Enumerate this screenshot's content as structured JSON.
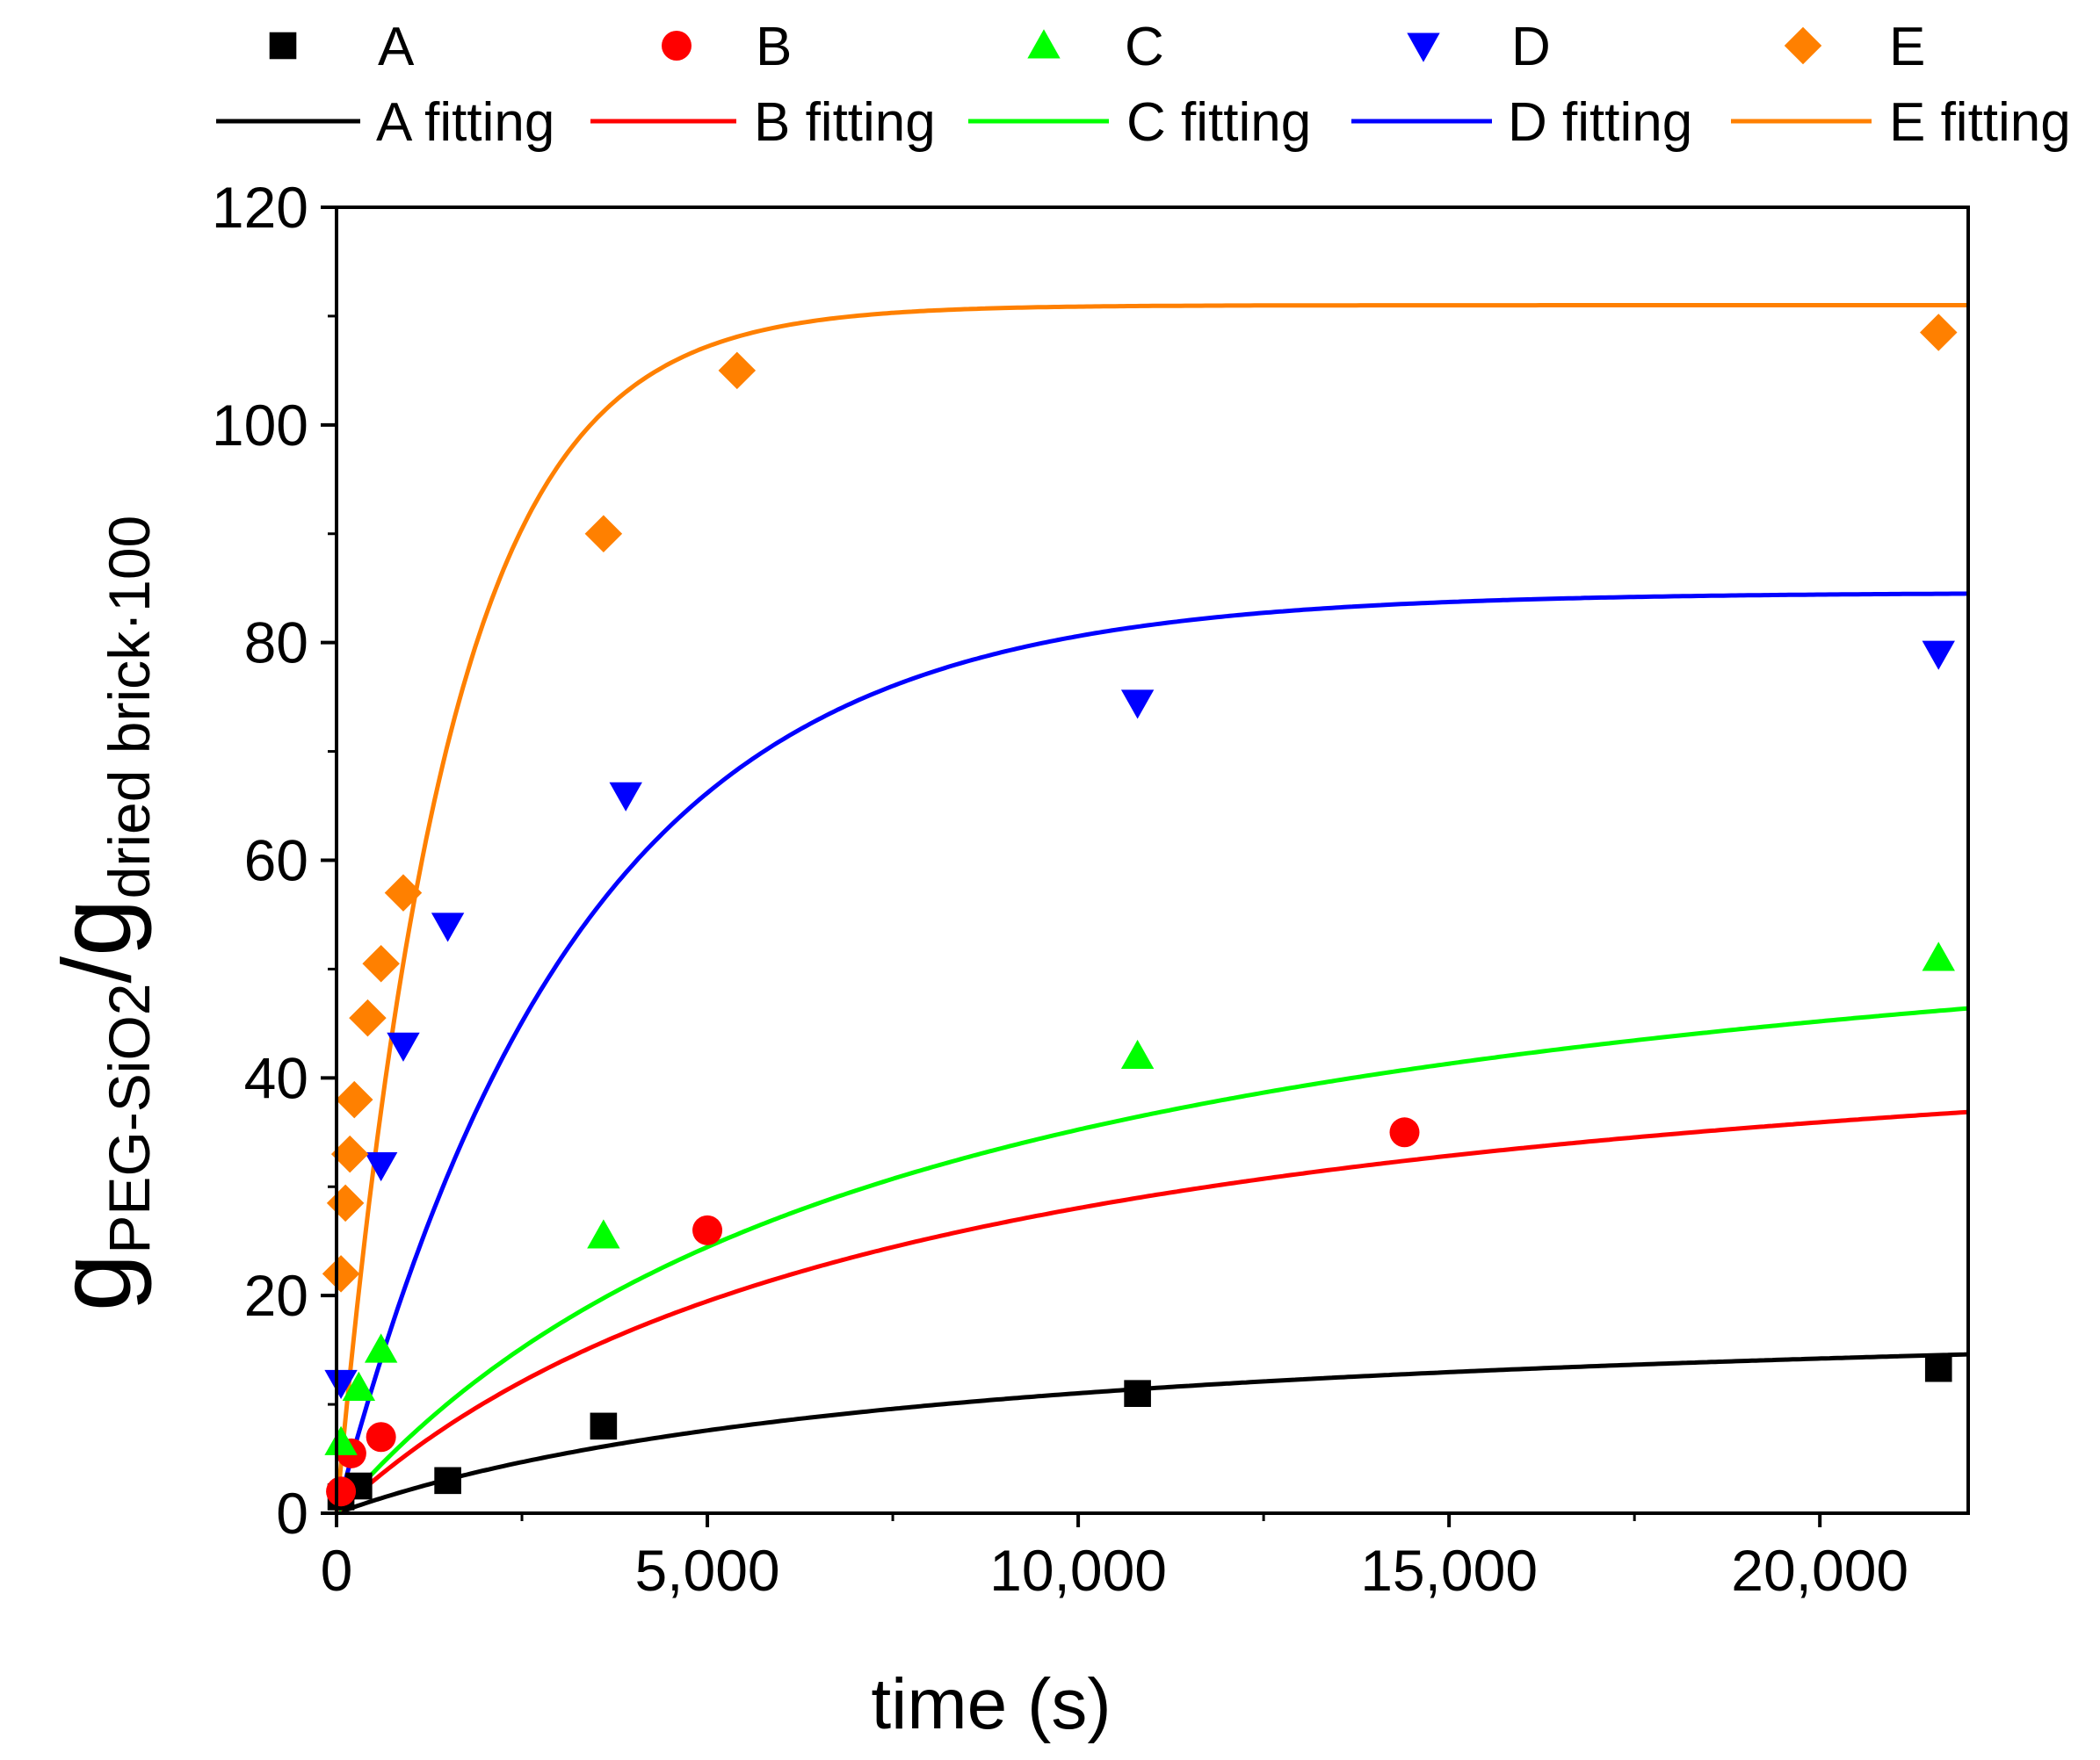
{
  "chart_data": {
    "type": "scatter",
    "title": "",
    "xlabel": "time (s)",
    "ylabel": {
      "base1": "g",
      "sub1": "PEG-SiO2",
      "slash": "/",
      "base2": "g",
      "sub2": "dried brick·100"
    },
    "xlim": [
      0,
      22000
    ],
    "ylim": [
      0,
      120
    ],
    "x_ticks": [
      0,
      5000,
      10000,
      15000,
      20000
    ],
    "x_tick_labels": [
      "0",
      "5,000",
      "10,000",
      "15,000",
      "20,000"
    ],
    "y_ticks": [
      0,
      20,
      40,
      60,
      80,
      100,
      120
    ],
    "y_tick_labels": [
      "0",
      "20",
      "40",
      "60",
      "80",
      "100",
      "120"
    ],
    "grid": false,
    "legend_position": "top",
    "series": [
      {
        "name": "A",
        "marker": "square",
        "color": "#000000",
        "fit_label": "A fitting",
        "fit": {
          "ymax": 20,
          "k": 5.58e-05
        },
        "points": [
          [
            60,
            1.5
          ],
          [
            300,
            2.5
          ],
          [
            1500,
            3
          ],
          [
            3600,
            8
          ],
          [
            10800,
            11
          ],
          [
            21600,
            13.3
          ]
        ]
      },
      {
        "name": "B",
        "marker": "circle",
        "color": "#ff0000",
        "fit_label": "B fitting",
        "fit": {
          "ymax": 50,
          "k": 5.8e-05
        },
        "points": [
          [
            60,
            2
          ],
          [
            200,
            5.5
          ],
          [
            600,
            7
          ],
          [
            5000,
            26
          ],
          [
            14400,
            35
          ]
        ]
      },
      {
        "name": "C",
        "marker": "triangle-up",
        "color": "#00ff00",
        "fit_label": "C fitting",
        "fit": {
          "ymax": 63,
          "k": 5.77e-05
        },
        "points": [
          [
            60,
            6.5
          ],
          [
            300,
            11.5
          ],
          [
            600,
            15
          ],
          [
            3600,
            25.5
          ],
          [
            10800,
            42
          ],
          [
            21600,
            51
          ]
        ]
      },
      {
        "name": "D",
        "marker": "triangle-down",
        "color": "#0000ff",
        "fit_label": "D fitting",
        "fit": {
          "ymax": 84.6,
          "k": 0.000305
        },
        "points": [
          [
            60,
            12
          ],
          [
            600,
            32
          ],
          [
            900,
            43
          ],
          [
            1500,
            54
          ],
          [
            3900,
            66
          ],
          [
            10800,
            74.5
          ],
          [
            21600,
            79
          ]
        ]
      },
      {
        "name": "E",
        "marker": "diamond",
        "color": "#ff8000",
        "fit_label": "E fitting",
        "fit": {
          "ymax": 111,
          "k": 0.000675
        },
        "points": [
          [
            60,
            22
          ],
          [
            120,
            28.5
          ],
          [
            180,
            33
          ],
          [
            240,
            38
          ],
          [
            420,
            45.5
          ],
          [
            600,
            50.5
          ],
          [
            900,
            57
          ],
          [
            3600,
            90
          ],
          [
            5400,
            105
          ],
          [
            21600,
            108.5
          ]
        ]
      }
    ]
  }
}
